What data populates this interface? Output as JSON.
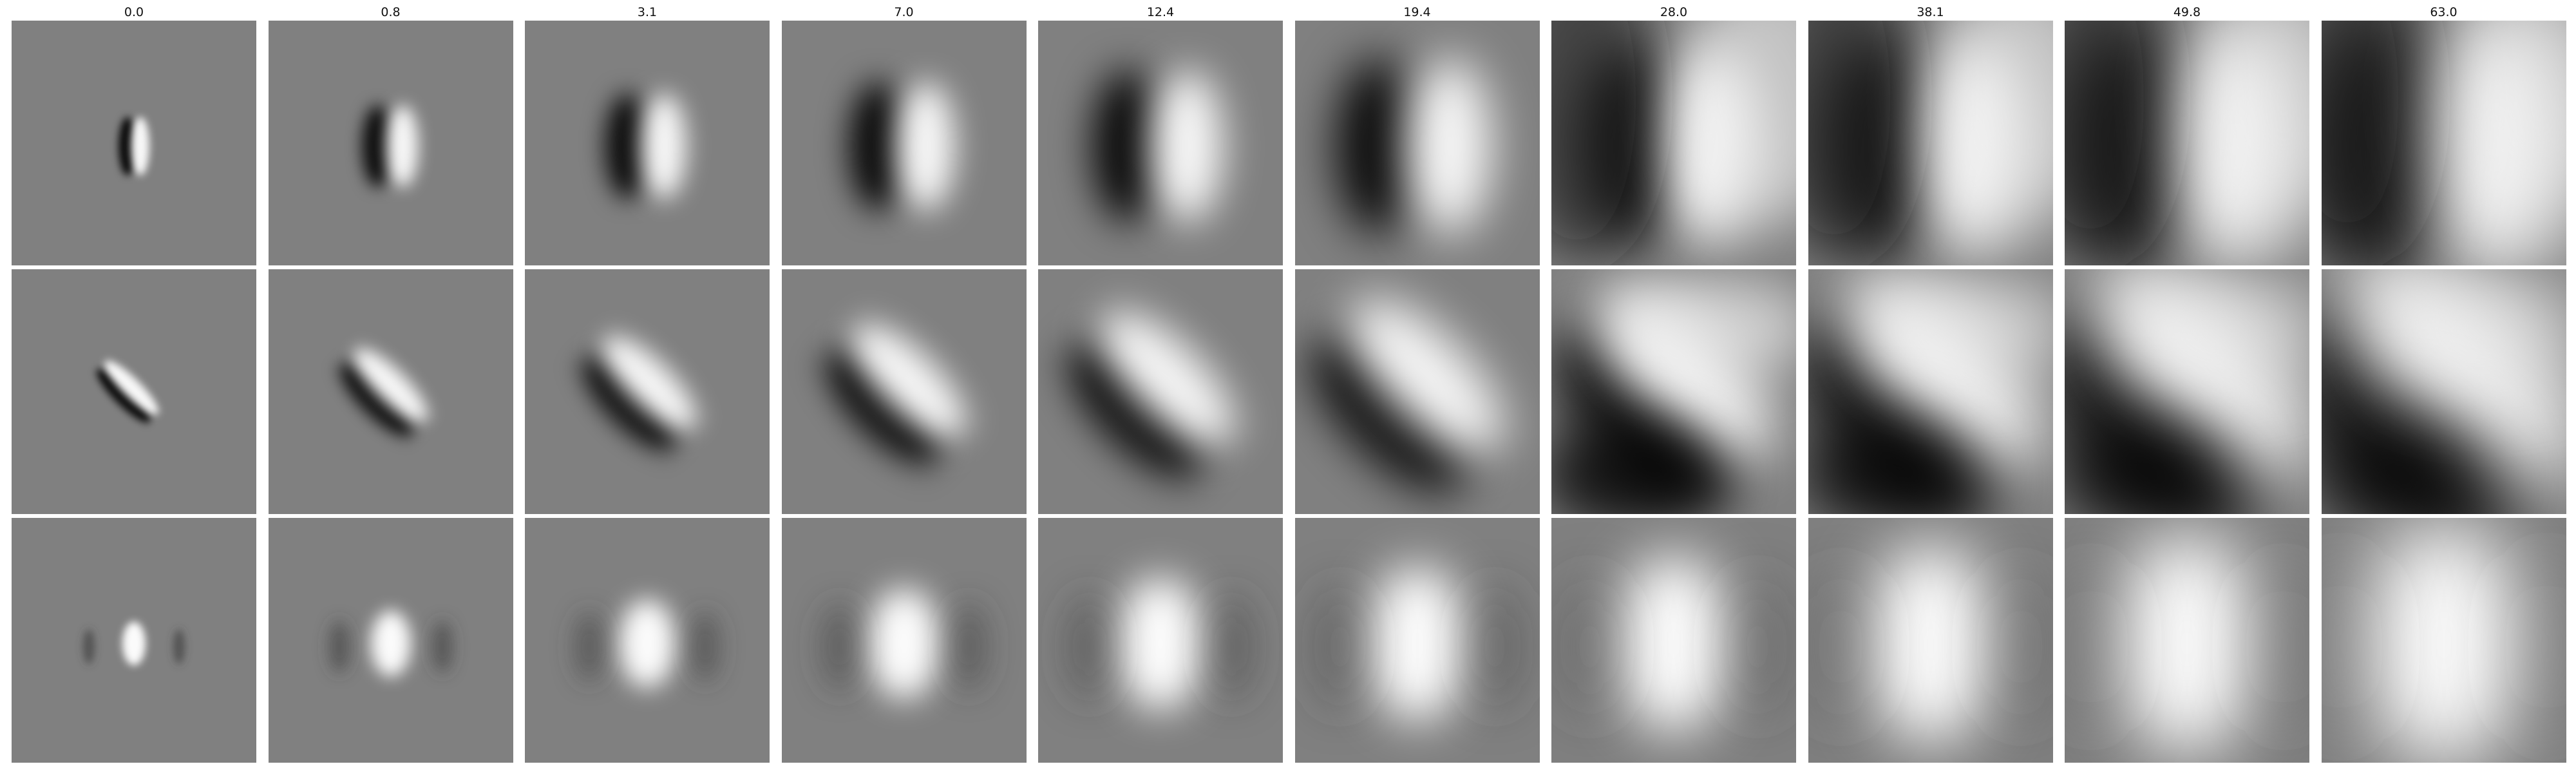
{
  "figure": {
    "column_labels": [
      "0.0",
      "0.8",
      "3.1",
      "7.0",
      "12.4",
      "19.4",
      "28.0",
      "38.1",
      "49.8",
      "63.0"
    ],
    "rows": 3,
    "columns": 10,
    "colormap": "grayscale",
    "colors": {
      "background": "#ffffff",
      "mid_gray": "#808080",
      "dark": "#000000",
      "light": "#ffffff"
    }
  }
}
